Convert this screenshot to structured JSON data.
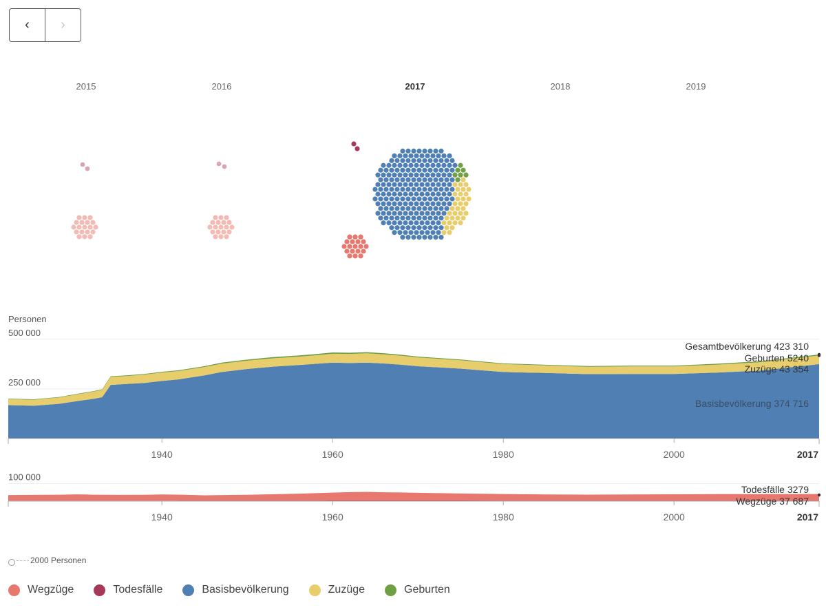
{
  "nav": {
    "prev_symbol": "‹",
    "next_symbol": "›"
  },
  "colors": {
    "wegzuege": "#e8776d",
    "todesfaelle": "#a8385a",
    "basis": "#4f7fb3",
    "zuzuege": "#e8cd6c",
    "geburten": "#6fa043"
  },
  "timeline": {
    "years": [
      {
        "label": "2015",
        "active": false
      },
      {
        "label": "2016",
        "active": false
      },
      {
        "label": "2017",
        "active": true
      },
      {
        "label": "2018",
        "active": false
      },
      {
        "label": "2019",
        "active": false
      }
    ]
  },
  "scale_note": "2000 Personen",
  "legend": [
    {
      "label": "Wegzüge",
      "color": "#e8776d"
    },
    {
      "label": "Todesfälle",
      "color": "#a8385a"
    },
    {
      "label": "Basisbevölkerung",
      "color": "#4f7fb3"
    },
    {
      "label": "Zuzüge",
      "color": "#e8cd6c"
    },
    {
      "label": "Geburten",
      "color": "#6fa043"
    }
  ],
  "chart_data": [
    {
      "type": "area",
      "ylabel": "Personen",
      "x_ticks": [
        "1940",
        "1960",
        "1980",
        "2000",
        "2017"
      ],
      "y_ticks": [
        {
          "value": 250000,
          "label": "250 000"
        },
        {
          "value": 500000,
          "label": "500 000"
        }
      ],
      "xlim": [
        1922,
        2017
      ],
      "ylim": [
        0,
        520000
      ],
      "x": [
        1922,
        1925,
        1928,
        1930,
        1932,
        1933,
        1934,
        1936,
        1938,
        1939,
        1940,
        1942,
        1945,
        1947,
        1950,
        1953,
        1956,
        1958,
        1960,
        1962,
        1964,
        1966,
        1968,
        1970,
        1975,
        1980,
        1985,
        1990,
        1995,
        2000,
        2005,
        2010,
        2015,
        2017
      ],
      "series": [
        {
          "name": "Basisbevölkerung",
          "color": "#4f7fb3",
          "values": [
            168000,
            165000,
            175000,
            188000,
            200000,
            208000,
            270000,
            275000,
            280000,
            285000,
            290000,
            298000,
            318000,
            335000,
            350000,
            362000,
            370000,
            376000,
            382000,
            380000,
            382000,
            378000,
            372000,
            364000,
            352000,
            335000,
            330000,
            324000,
            325000,
            325000,
            332000,
            342000,
            365000,
            374716
          ]
        },
        {
          "name": "Zuzüge",
          "color": "#e8cd6c",
          "values": [
            30000,
            30000,
            32000,
            34000,
            36000,
            37000,
            40000,
            40000,
            42000,
            42000,
            42000,
            42000,
            42000,
            42000,
            42000,
            42000,
            42000,
            43000,
            45000,
            46000,
            47000,
            46000,
            45000,
            44000,
            42000,
            40000,
            38000,
            37000,
            38000,
            38000,
            40000,
            42000,
            43000,
            43354
          ]
        },
        {
          "name": "Geburten",
          "color": "#6fa043",
          "values": [
            2500,
            2500,
            2500,
            2600,
            2800,
            3000,
            3200,
            3300,
            3400,
            3600,
            3800,
            4000,
            4500,
            5000,
            5500,
            6000,
            6200,
            6300,
            6300,
            6200,
            6000,
            5500,
            5000,
            4500,
            4000,
            3500,
            3500,
            3800,
            4000,
            4200,
            4500,
            4800,
            5100,
            5240
          ]
        }
      ],
      "labels": [
        {
          "text": "Gesamtbevölkerung 423 310"
        },
        {
          "text": "Geburten 5240"
        },
        {
          "text": "Zuzüge 43 354"
        },
        {
          "text": "Basisbevölkerung 374 716"
        }
      ]
    },
    {
      "type": "area",
      "x_ticks": [
        "1940",
        "1960",
        "1980",
        "2000",
        "2017"
      ],
      "y_ticks": [
        {
          "value": 100000,
          "label": "100 000"
        }
      ],
      "xlim": [
        1922,
        2017
      ],
      "ylim": [
        0,
        110000
      ],
      "x": [
        1922,
        1925,
        1928,
        1930,
        1932,
        1935,
        1938,
        1940,
        1942,
        1945,
        1948,
        1950,
        1953,
        1956,
        1958,
        1960,
        1962,
        1964,
        1966,
        1968,
        1970,
        1975,
        1980,
        1985,
        1990,
        1995,
        2000,
        2005,
        2010,
        2015,
        2017
      ],
      "series": [
        {
          "name": "Todesfälle",
          "color": "#a8385a",
          "values": [
            2800,
            2800,
            2900,
            2900,
            3000,
            3000,
            3100,
            3100,
            3200,
            3300,
            3300,
            3400,
            3500,
            3600,
            3600,
            3700,
            3700,
            3800,
            3800,
            3800,
            3800,
            3700,
            3600,
            3500,
            3400,
            3400,
            3300,
            3300,
            3300,
            3300,
            3279
          ]
        },
        {
          "name": "Wegzüge",
          "color": "#e8776d",
          "values": [
            32000,
            33000,
            34000,
            36000,
            34000,
            33000,
            33000,
            35000,
            34000,
            30000,
            32000,
            33000,
            36000,
            39000,
            42000,
            45000,
            48000,
            49000,
            47000,
            46000,
            44000,
            40000,
            37000,
            35000,
            34000,
            35000,
            36000,
            37000,
            37000,
            37500,
            37687
          ]
        }
      ],
      "labels": [
        {
          "text": "Todesfälle 3279"
        },
        {
          "text": "Wegzüge 37 687"
        }
      ]
    }
  ]
}
